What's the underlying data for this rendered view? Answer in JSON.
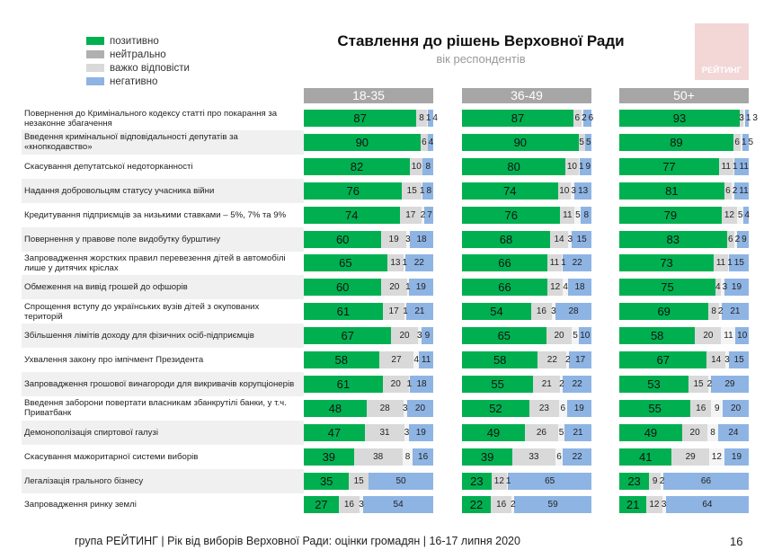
{
  "chart_data": {
    "type": "bar",
    "stacked": true,
    "orientation": "horizontal",
    "title": "Ставлення до рішень Верховної Ради",
    "subtitle": "вік респондентів",
    "legend": [
      {
        "name": "позитивно",
        "color": "#00b050"
      },
      {
        "name": "нейтрально",
        "color": "#b0b0b0"
      },
      {
        "name": "важко відповісти",
        "color": "#d9d9d9"
      },
      {
        "name": "негативно",
        "color": "#8eb4e3"
      }
    ],
    "segment_colors": [
      "#00b050",
      "#d9d9d9",
      "#f4f4f4",
      "#8eb4e3"
    ],
    "legend_placement": "top-left",
    "categories": [
      "Повернення до Кримінального кодексу статті про покарання за незаконне збагачення",
      "Введення кримінальної відповідальності депутатів за «кнопкодавство»",
      "Скасування депутатської недоторканності",
      "Надання добровольцям статусу учасника війни",
      "Кредитування підприємців за низькими ставками – 5%, 7% та 9%",
      "Повернення у правове поле видобутку бурштину",
      "Запровадження жорстких правил перевезення дітей в автомобілі лише у дитячих кріслах",
      "Обмеження на вивід грошей до офшорів",
      "Спрощення вступу до українських вузів дітей з окупованих територій",
      "Збільшення лімітів доходу для фізичних осіб-підприємців",
      "Ухвалення закону про імпічмент Президента",
      "Запровадження грошової винагороди для викривачів корупціонерів",
      "Введення заборони повертати власникам збанкрутілі банки, у т.ч. Приватбанк",
      "Демонополізація спиртової галузі",
      "Скасування мажоритарної системи виборів",
      "Легалізація грального бізнесу",
      "Запровадження ринку землі"
    ],
    "panels": [
      {
        "name": "18-35",
        "rows": [
          [
            87,
            8,
            1,
            4
          ],
          [
            90,
            6,
            0,
            4
          ],
          [
            82,
            10,
            0,
            8
          ],
          [
            76,
            15,
            1,
            8
          ],
          [
            74,
            17,
            2,
            7
          ],
          [
            60,
            19,
            3,
            18
          ],
          [
            65,
            13,
            1,
            22
          ],
          [
            60,
            20,
            1,
            19
          ],
          [
            61,
            17,
            1,
            21
          ],
          [
            67,
            20,
            3,
            9
          ],
          [
            58,
            27,
            4,
            11
          ],
          [
            61,
            20,
            1,
            18
          ],
          [
            48,
            28,
            3,
            20
          ],
          [
            47,
            31,
            3,
            19
          ],
          [
            39,
            38,
            8,
            16
          ],
          [
            35,
            15,
            0,
            50
          ],
          [
            27,
            16,
            3,
            54
          ]
        ]
      },
      {
        "name": "36-49",
        "rows": [
          [
            87,
            6,
            2,
            6
          ],
          [
            90,
            5,
            0,
            5
          ],
          [
            80,
            10,
            1,
            9
          ],
          [
            74,
            10,
            3,
            13
          ],
          [
            76,
            11,
            5,
            8
          ],
          [
            68,
            14,
            3,
            15
          ],
          [
            66,
            11,
            1,
            22
          ],
          [
            66,
            12,
            4,
            18
          ],
          [
            54,
            16,
            3,
            28
          ],
          [
            65,
            20,
            5,
            10
          ],
          [
            58,
            22,
            2,
            17
          ],
          [
            55,
            21,
            2,
            22
          ],
          [
            52,
            23,
            6,
            19
          ],
          [
            49,
            26,
            5,
            21
          ],
          [
            39,
            33,
            6,
            22
          ],
          [
            23,
            12,
            1,
            65
          ],
          [
            22,
            16,
            2,
            59
          ]
        ]
      },
      {
        "name": "50+",
        "rows": [
          [
            93,
            3,
            1,
            3
          ],
          [
            89,
            6,
            1,
            5
          ],
          [
            77,
            11,
            1,
            11
          ],
          [
            81,
            6,
            2,
            11
          ],
          [
            79,
            12,
            5,
            4
          ],
          [
            83,
            6,
            2,
            9
          ],
          [
            73,
            11,
            1,
            15
          ],
          [
            75,
            4,
            3,
            19
          ],
          [
            69,
            8,
            2,
            21
          ],
          [
            58,
            20,
            11,
            10
          ],
          [
            67,
            14,
            3,
            15
          ],
          [
            53,
            15,
            2,
            29
          ],
          [
            55,
            16,
            9,
            20
          ],
          [
            49,
            20,
            8,
            24
          ],
          [
            41,
            29,
            12,
            19
          ],
          [
            23,
            9,
            2,
            66
          ],
          [
            21,
            12,
            3,
            64
          ]
        ]
      }
    ]
  },
  "logo": "РЕЙТИНГ",
  "footer": "група РЕЙТИНГ | Рік від виборів Верховної Ради: оцінки громадян | 16-17 липня 2020",
  "page_number": "16"
}
